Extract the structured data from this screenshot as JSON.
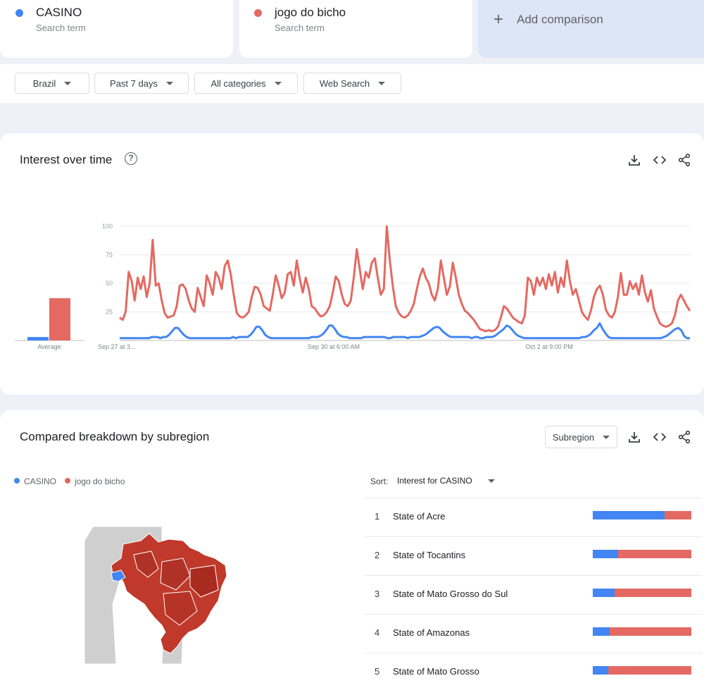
{
  "terms": [
    {
      "name": "CASINO",
      "sub": "Search term",
      "color": "#4285f4"
    },
    {
      "name": "jogo do bicho",
      "sub": "Search term",
      "color": "#e46962"
    }
  ],
  "add_comparison": "Add comparison",
  "filters": [
    {
      "label": "Brazil"
    },
    {
      "label": "Past 7 days"
    },
    {
      "label": "All categories"
    },
    {
      "label": "Web Search"
    }
  ],
  "interest": {
    "title": "Interest over time",
    "average_label": "Average"
  },
  "chart_data": {
    "type": "line",
    "x_labels": [
      "Sep 27 at 3...",
      "Sep 30 at 6:00 AM",
      "Oct 2 at 9:00 PM"
    ],
    "ylim": [
      0,
      100
    ],
    "yticks": [
      25,
      50,
      75,
      100
    ],
    "averages": [
      {
        "name": "CASINO",
        "value": 3
      },
      {
        "name": "jogo do bicho",
        "value": 37
      }
    ],
    "series": [
      {
        "name": "CASINO",
        "color": "#4285f4",
        "values": [
          2,
          2,
          2,
          2,
          2,
          2,
          2,
          2,
          2,
          2,
          2,
          3,
          3,
          3,
          2,
          3,
          3,
          5,
          8,
          11,
          11,
          8,
          5,
          3,
          2,
          2,
          2,
          2,
          2,
          2,
          2,
          2,
          2,
          2,
          2,
          2,
          2,
          2,
          2,
          3,
          2,
          3,
          3,
          3,
          3,
          5,
          8,
          12,
          12,
          9,
          5,
          3,
          2,
          2,
          2,
          2,
          2,
          2,
          2,
          2,
          2,
          2,
          2,
          2,
          2,
          2,
          3,
          3,
          3,
          4,
          6,
          9,
          13,
          13,
          10,
          6,
          4,
          3,
          3,
          2,
          2,
          2,
          2,
          2,
          3,
          3,
          3,
          3,
          3,
          3,
          3,
          3,
          2,
          2,
          3,
          3,
          3,
          3,
          3,
          2,
          3,
          3,
          3,
          3,
          4,
          5,
          7,
          9,
          11,
          12,
          11,
          8,
          6,
          4,
          3,
          3,
          3,
          3,
          3,
          3,
          3,
          2,
          3,
          3,
          2,
          2,
          3,
          3,
          3,
          4,
          6,
          8,
          10,
          13,
          12,
          9,
          6,
          4,
          3,
          2,
          2,
          2,
          2,
          2,
          2,
          2,
          2,
          2,
          2,
          2,
          2,
          2,
          2,
          2,
          2,
          2,
          2,
          2,
          2,
          3,
          3,
          4,
          6,
          9,
          11,
          15,
          10,
          6,
          3,
          2,
          2,
          2,
          2,
          2,
          2,
          2,
          2,
          2,
          2,
          2,
          2,
          2,
          2,
          2,
          2,
          2,
          2,
          3,
          4,
          6,
          8,
          10,
          11,
          9,
          4,
          2,
          2
        ]
      },
      {
        "name": "jogo do bicho",
        "color": "#e46962",
        "values": [
          20,
          18,
          25,
          60,
          52,
          35,
          55,
          45,
          56,
          38,
          50,
          88,
          48,
          50,
          35,
          24,
          20,
          21,
          22,
          30,
          48,
          49,
          45,
          35,
          28,
          25,
          46,
          38,
          30,
          57,
          50,
          40,
          60,
          55,
          45,
          65,
          70,
          58,
          40,
          24,
          21,
          20,
          22,
          25,
          38,
          47,
          46,
          40,
          30,
          28,
          26,
          40,
          57,
          48,
          37,
          42,
          58,
          60,
          48,
          70,
          54,
          42,
          55,
          45,
          30,
          28,
          24,
          21,
          22,
          25,
          30,
          42,
          56,
          52,
          40,
          32,
          30,
          35,
          55,
          80,
          62,
          45,
          60,
          55,
          68,
          72,
          55,
          40,
          45,
          100,
          70,
          48,
          30,
          24,
          21,
          20,
          22,
          26,
          32,
          45,
          56,
          63,
          55,
          50,
          40,
          35,
          45,
          70,
          55,
          40,
          47,
          68,
          55,
          40,
          32,
          26,
          24,
          21,
          18,
          14,
          10,
          9,
          8,
          9,
          8,
          9,
          12,
          20,
          30,
          28,
          24,
          20,
          18,
          16,
          15,
          22,
          55,
          52,
          40,
          55,
          48,
          55,
          45,
          58,
          48,
          60,
          42,
          55,
          47,
          70,
          52,
          40,
          45,
          35,
          25,
          21,
          18,
          26,
          38,
          45,
          48,
          40,
          27,
          22,
          20,
          25,
          38,
          59,
          40,
          40,
          52,
          45,
          50,
          40,
          57,
          42,
          34,
          44,
          28,
          21,
          15,
          13,
          12,
          13,
          15,
          22,
          35,
          40,
          35,
          30,
          26
        ]
      }
    ]
  },
  "breakdown": {
    "title": "Compared breakdown by subregion",
    "selector": "Subregion",
    "sort_label": "Sort:",
    "sort_value": "Interest for CASINO",
    "rows": [
      {
        "rank": "1",
        "name": "State of Acre",
        "casino_share": 0.73
      },
      {
        "rank": "2",
        "name": "State of Tocantins",
        "casino_share": 0.26
      },
      {
        "rank": "3",
        "name": "State of Mato Grosso do Sul",
        "casino_share": 0.22
      },
      {
        "rank": "4",
        "name": "State of Amazonas",
        "casino_share": 0.17
      },
      {
        "rank": "5",
        "name": "State of Mato Grosso",
        "casino_share": 0.16
      }
    ]
  }
}
